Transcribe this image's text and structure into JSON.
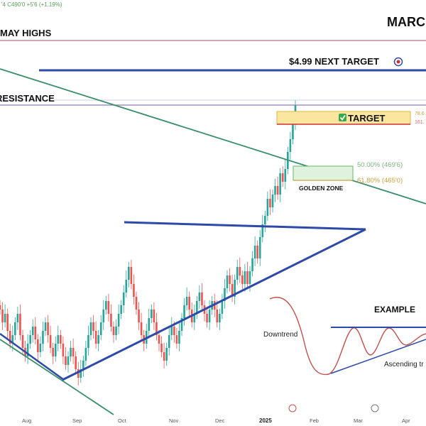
{
  "header": {
    "ticker_line": "'4 C490'0 +5'6 (+1.19%)",
    "contract": "MARC"
  },
  "levels": {
    "may_highs": "MAY HIGHS",
    "resistance": "RESISTANCE",
    "next_target": "$4.99 NEXT TARGET",
    "target": "TARGET",
    "fib_top_1": "78.6",
    "fib_top_2": "161.",
    "fib_50": "50.00% (469'6)",
    "fib_618": "61.80% (465'0)",
    "golden_zone": "GOLDEN ZONE"
  },
  "example": {
    "title": "EXAMPLE",
    "downtrend": "Downtrend",
    "ascending": "Ascending tr"
  },
  "colors": {
    "accent_blue": "#2e4aa8",
    "trend_green": "#3a8f6a",
    "may_highs_line": "#c08a9c",
    "resistance_line": "#8a7bbd",
    "candle_up": "#26a69a",
    "candle_down": "#ef5350",
    "target_fill": "#fbe6a0",
    "golden_fill": "#dff2dd",
    "example_curve": "#c0504d"
  },
  "chart_data": {
    "type": "candlestick",
    "x_tick_labels": [
      "Aug",
      "Sep",
      "Oct",
      "Nov",
      "Dec",
      "2025",
      "Feb",
      "Mar",
      "Apr"
    ],
    "series": [
      {
        "values": [
          452,
          449,
          451,
          447,
          444,
          446,
          449,
          451,
          446,
          443,
          441,
          444,
          446,
          448,
          445,
          442,
          444,
          447,
          449,
          446,
          443,
          441,
          444,
          446,
          444,
          441,
          439,
          441,
          443,
          441,
          438,
          436,
          438,
          440,
          443,
          446,
          449,
          447,
          444,
          446,
          449,
          452,
          454,
          451,
          448,
          446,
          448,
          451,
          453,
          456,
          459,
          462,
          458,
          455,
          452,
          449,
          446,
          444,
          447,
          450,
          452,
          449,
          446,
          444,
          442,
          440,
          443,
          446,
          448,
          446,
          444,
          447,
          450,
          453,
          455,
          452,
          449,
          451,
          454,
          456,
          453,
          451,
          449,
          452,
          454,
          452,
          449,
          451,
          454,
          457,
          460,
          458,
          455,
          459,
          462,
          460,
          458,
          461,
          458,
          461,
          464,
          467,
          464,
          469,
          472,
          474,
          478,
          476,
          479,
          481,
          479,
          484,
          482,
          485,
          489,
          492,
          496,
          500
        ]
      }
    ]
  }
}
